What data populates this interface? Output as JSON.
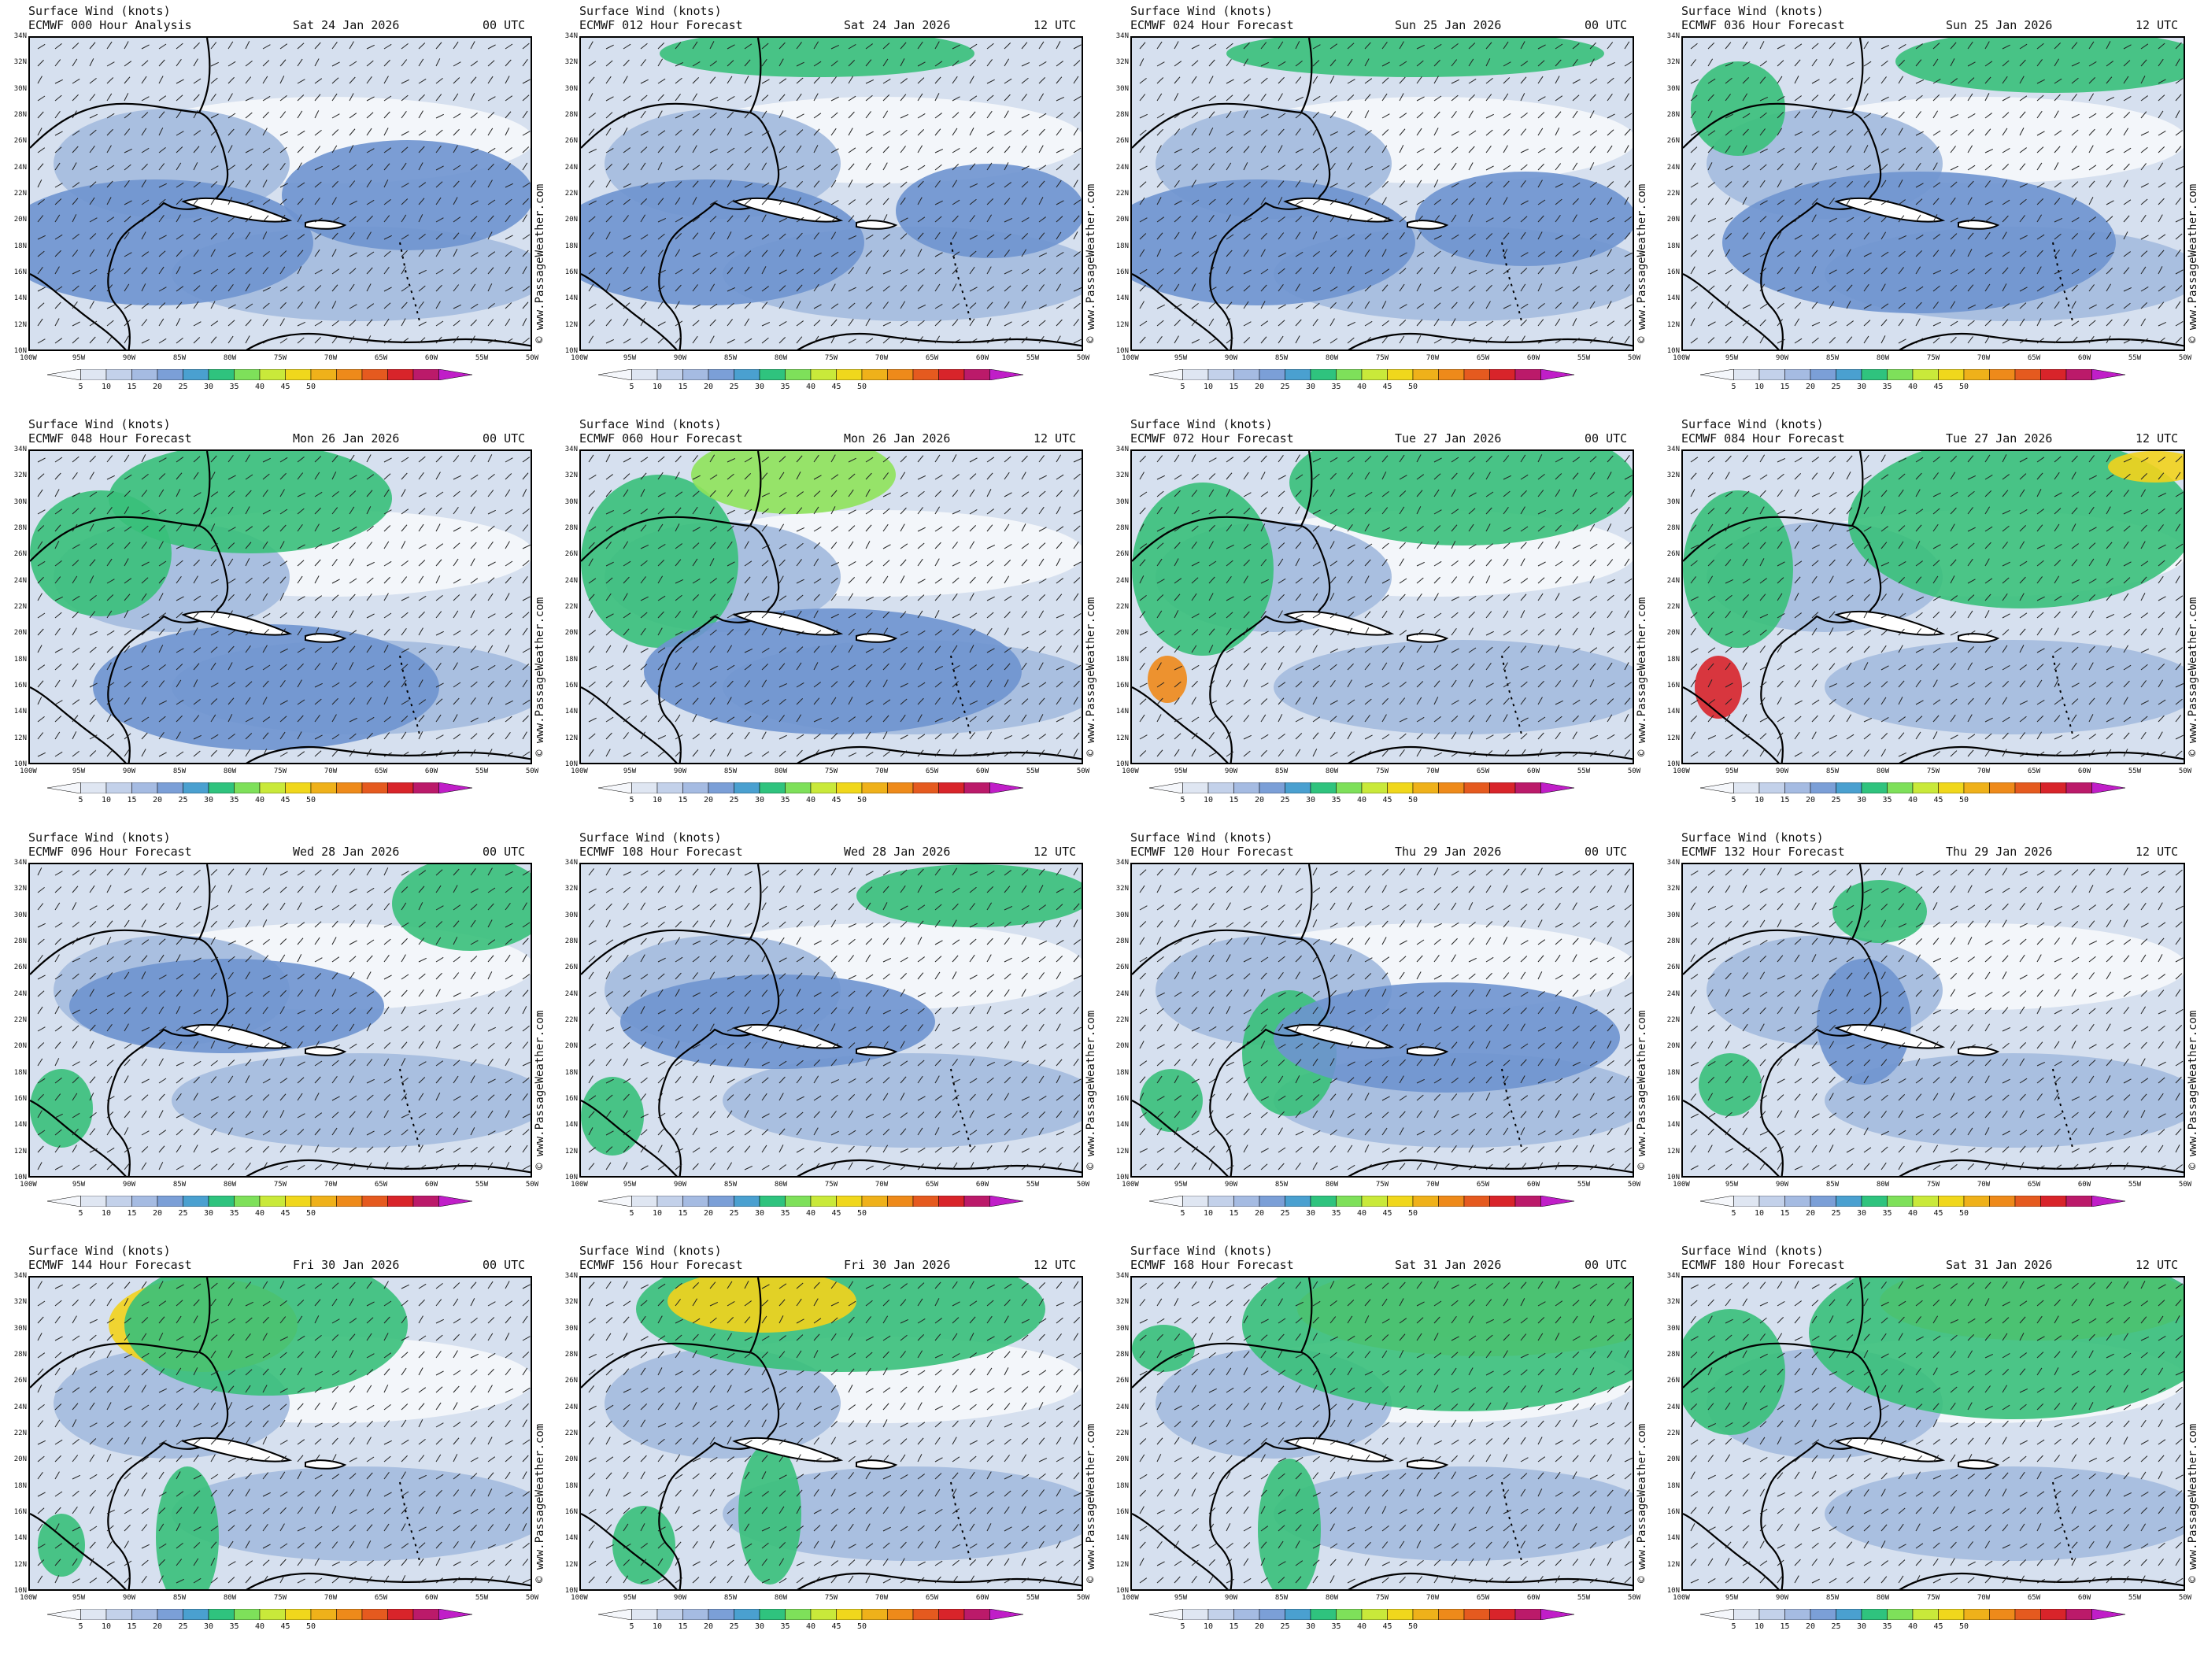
{
  "panel_title": "Surface Wind (knots)",
  "watermark": "© www.PassageWeather.com",
  "colors": {
    "calm": "#f3f6fa",
    "light": "#d6e0ef",
    "mid": "#a9bfe0",
    "moderate": "#6e93cf",
    "fresh": "#38c07a",
    "strong": "#8fe35a",
    "gale": "#f3d31c",
    "storm": "#ef8a1a",
    "severe": "#d8242a",
    "land_line": "#000000",
    "barb": "#222222"
  },
  "colorbar": {
    "ticks": [
      "5",
      "10",
      "15",
      "20",
      "25",
      "30",
      "35",
      "40",
      "45",
      "50"
    ],
    "colors": [
      "#f5f7fb",
      "#dfe6f2",
      "#c3d1ea",
      "#a5bbe2",
      "#7b9fd7",
      "#4aa0d0",
      "#2fc37e",
      "#7ee05a",
      "#c9e93a",
      "#f0d71c",
      "#efb11a",
      "#ee8a1a",
      "#e55a1f",
      "#d8242a",
      "#bb1a6a",
      "#c01ec8"
    ]
  },
  "lat_ticks": [
    "34N",
    "32N",
    "30N",
    "28N",
    "26N",
    "24N",
    "22N",
    "20N",
    "18N",
    "16N",
    "14N",
    "12N",
    "10N"
  ],
  "lon_ticks": [
    "100W",
    "95W",
    "90W",
    "85W",
    "80W",
    "75W",
    "70W",
    "65W",
    "60W",
    "55W",
    "50W"
  ],
  "panels": [
    {
      "line2": "ECMWF 000 Hour Analysis",
      "date": "Sat 24 Jan 2026",
      "utc": "00 UTC"
    },
    {
      "line2": "ECMWF 012 Hour Forecast",
      "date": "Sat 24 Jan 2026",
      "utc": "12 UTC"
    },
    {
      "line2": "ECMWF 024 Hour Forecast",
      "date": "Sun 25 Jan 2026",
      "utc": "00 UTC"
    },
    {
      "line2": "ECMWF 036 Hour Forecast",
      "date": "Sun 25 Jan 2026",
      "utc": "12 UTC"
    },
    {
      "line2": "ECMWF 048 Hour Forecast",
      "date": "Mon 26 Jan 2026",
      "utc": "00 UTC"
    },
    {
      "line2": "ECMWF 060 Hour Forecast",
      "date": "Mon 26 Jan 2026",
      "utc": "12 UTC"
    },
    {
      "line2": "ECMWF 072 Hour Forecast",
      "date": "Tue 27 Jan 2026",
      "utc": "00 UTC"
    },
    {
      "line2": "ECMWF 084 Hour Forecast",
      "date": "Tue 27 Jan 2026",
      "utc": "12 UTC"
    },
    {
      "line2": "ECMWF 096 Hour Forecast",
      "date": "Wed 28 Jan 2026",
      "utc": "00 UTC"
    },
    {
      "line2": "ECMWF 108 Hour Forecast",
      "date": "Wed 28 Jan 2026",
      "utc": "12 UTC"
    },
    {
      "line2": "ECMWF 120 Hour Forecast",
      "date": "Thu 29 Jan 2026",
      "utc": "00 UTC"
    },
    {
      "line2": "ECMWF 132 Hour Forecast",
      "date": "Thu 29 Jan 2026",
      "utc": "12 UTC"
    },
    {
      "line2": "ECMWF 144 Hour Forecast",
      "date": "Fri 30 Jan 2026",
      "utc": "00 UTC"
    },
    {
      "line2": "ECMWF 156 Hour Forecast",
      "date": "Fri 30 Jan 2026",
      "utc": "12 UTC"
    },
    {
      "line2": "ECMWF 168 Hour Forecast",
      "date": "Sat 31 Jan 2026",
      "utc": "00 UTC"
    },
    {
      "line2": "ECMWF 180 Hour Forecast",
      "date": "Sat 31 Jan 2026",
      "utc": "12 UTC"
    }
  ]
}
